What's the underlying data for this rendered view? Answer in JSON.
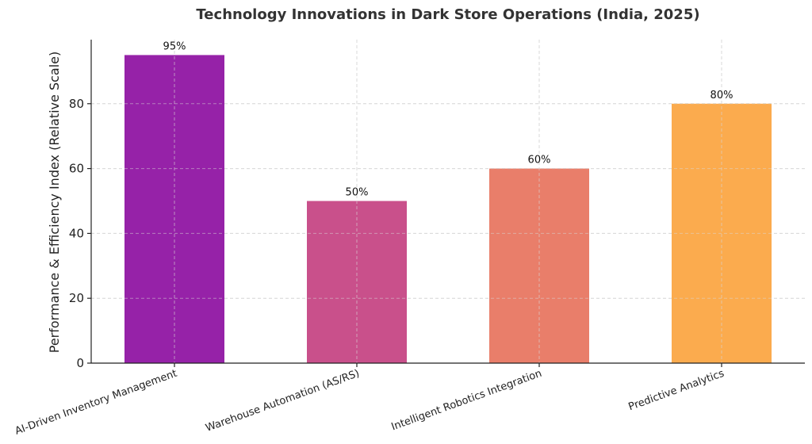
{
  "chart_data": {
    "type": "bar",
    "title": "Technology Innovations in Dark Store Operations (India, 2025)",
    "xlabel": "",
    "ylabel": "Performance & Efficiency Index (Relative Scale)",
    "categories": [
      "AI-Driven Inventory Management",
      "Warehouse Automation (AS/RS)",
      "Intelligent Robotics Integration",
      "Predictive Analytics"
    ],
    "values": [
      95,
      50,
      60,
      80
    ],
    "data_labels": [
      "95%",
      "50%",
      "60%",
      "80%"
    ],
    "colors": [
      "#9622a8",
      "#c9508b",
      "#e97e6a",
      "#fbab4e"
    ],
    "ylim": [
      0,
      100
    ],
    "yticks": [
      0,
      20,
      40,
      60,
      80
    ],
    "grid": true,
    "legend": false
  }
}
